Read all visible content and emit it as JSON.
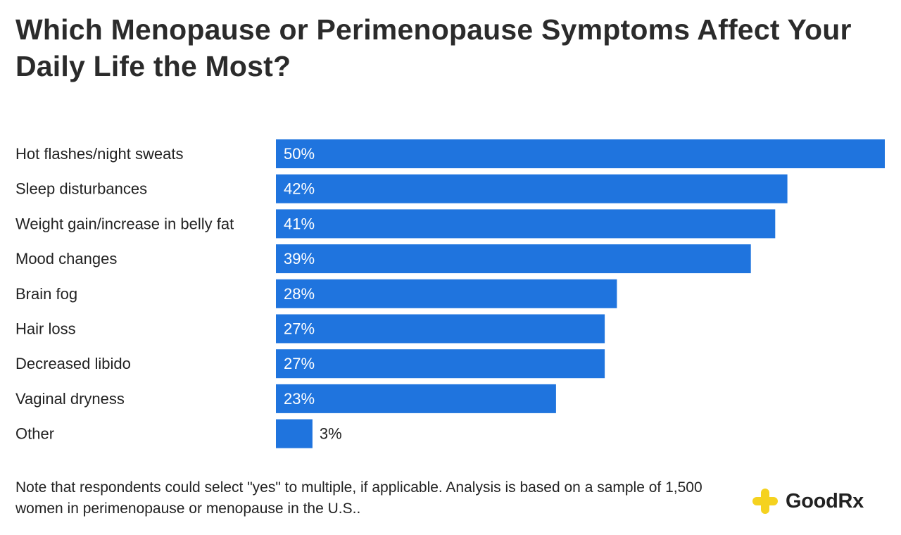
{
  "chart_data": {
    "type": "bar",
    "orientation": "horizontal",
    "title": "Which Menopause or Perimenopause Symptoms Affect Your Daily Life the Most?",
    "categories": [
      "Hot flashes/night sweats",
      "Sleep disturbances",
      "Weight gain/increase in belly fat",
      "Mood changes",
      "Brain fog",
      "Hair loss",
      "Decreased libido",
      "Vaginal dryness",
      "Other"
    ],
    "values": [
      50,
      42,
      41,
      39,
      28,
      27,
      27,
      23,
      3
    ],
    "value_labels": [
      "50%",
      "42%",
      "41%",
      "39%",
      "28%",
      "27%",
      "27%",
      "23%",
      "3%"
    ],
    "unit": "%",
    "xlim": [
      0,
      50
    ],
    "bar_color": "#1f74de",
    "grid": false,
    "legend": "none"
  },
  "footnote": "Note that respondents could select \"yes\" to multiple, if applicable. Analysis is based on a sample of 1,500 women in perimenopause or menopause in the U.S..",
  "brand": {
    "name": "GoodRx",
    "icon": "plus-cross-icon",
    "icon_color": "#f5d21f"
  }
}
